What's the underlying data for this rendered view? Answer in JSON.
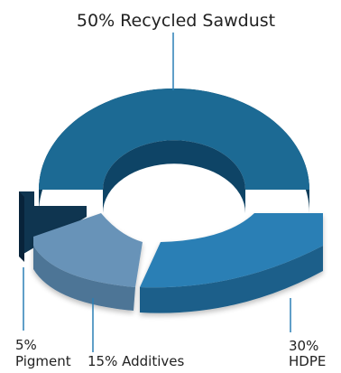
{
  "chart_data": {
    "type": "pie",
    "title": "50% Recycled Sawdust",
    "slices": [
      {
        "name": "Recycled Sawdust",
        "value": 50,
        "label": "50% Recycled Sawdust",
        "color": "#1c6a94"
      },
      {
        "name": "HDPE",
        "value": 30,
        "label_line1": "30%",
        "label_line2": "HDPE",
        "color": "#2a7fb5"
      },
      {
        "name": "Additives",
        "value": 15,
        "label": "15% Additives",
        "color": "#6893b8"
      },
      {
        "name": "Pigment",
        "value": 5,
        "label_line1": "5%",
        "label_line2": "Pigment",
        "color": "#0f3550"
      }
    ],
    "style": "3d-donut-exploded",
    "leader_color": "#2a7fb5"
  }
}
